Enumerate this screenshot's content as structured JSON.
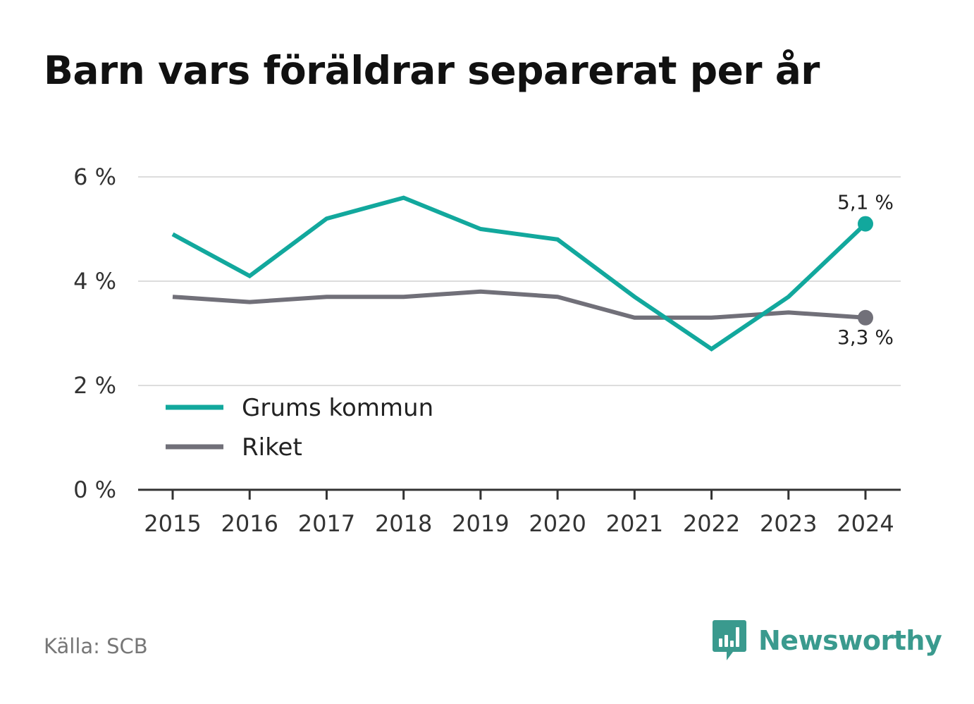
{
  "title": "Barn vars föräldrar separerat per år",
  "source": "Källa: SCB",
  "brand": {
    "name": "Newsworthy",
    "icon": "bar-chart-speech-bubble-icon",
    "color": "#3a9a8e"
  },
  "chart_data": {
    "type": "line",
    "title": "Barn vars föräldrar separerat per år",
    "xlabel": "",
    "ylabel": "",
    "x": [
      "2015",
      "2016",
      "2017",
      "2018",
      "2019",
      "2020",
      "2021",
      "2022",
      "2023",
      "2024"
    ],
    "y_ticks": [
      "0 %",
      "2 %",
      "4 %",
      "6 %"
    ],
    "y_tick_values": [
      0,
      2,
      4,
      6
    ],
    "ylim": [
      0,
      6
    ],
    "grid": true,
    "legend_position": "bottom-left",
    "series": [
      {
        "name": "Grums kommun",
        "color": "#12a89d",
        "values": [
          4.9,
          4.1,
          5.2,
          5.6,
          5.0,
          4.8,
          3.7,
          2.7,
          3.7,
          5.1
        ],
        "end_label": "5,1 %"
      },
      {
        "name": "Riket",
        "color": "#717079",
        "values": [
          3.7,
          3.6,
          3.7,
          3.7,
          3.8,
          3.7,
          3.3,
          3.3,
          3.4,
          3.3
        ],
        "end_label": "3,3 %"
      }
    ]
  }
}
